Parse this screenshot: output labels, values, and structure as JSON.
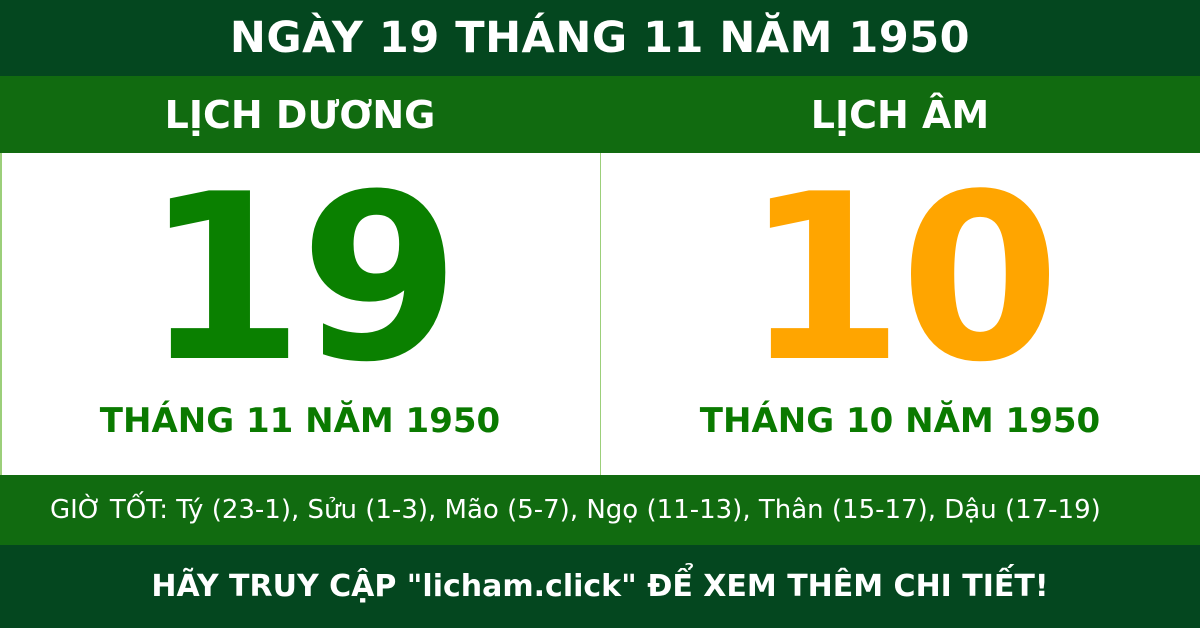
{
  "title": "NGÀY 19 THÁNG 11 NĂM 1950",
  "solar": {
    "heading": "LỊCH DƯƠNG",
    "day": "19",
    "month_year": "THÁNG 11 NĂM 1950"
  },
  "lunar": {
    "heading": "LỊCH ÂM",
    "day": "10",
    "month_year": "THÁNG 10 NĂM 1950"
  },
  "good_hours": "GIỜ TỐT: Tý (23-1), Sửu (1-3), Mão (5-7), Ngọ (11-13), Thân (15-17), Dậu (17-19)",
  "footer": "HÃY TRUY CẬP \"licham.click\" ĐỂ XEM THÊM CHI TIẾT!",
  "colors": {
    "dark_green": "#04471f",
    "green": "#116b10",
    "solar_digit": "#0a8000",
    "lunar_digit": "#ffa500"
  }
}
